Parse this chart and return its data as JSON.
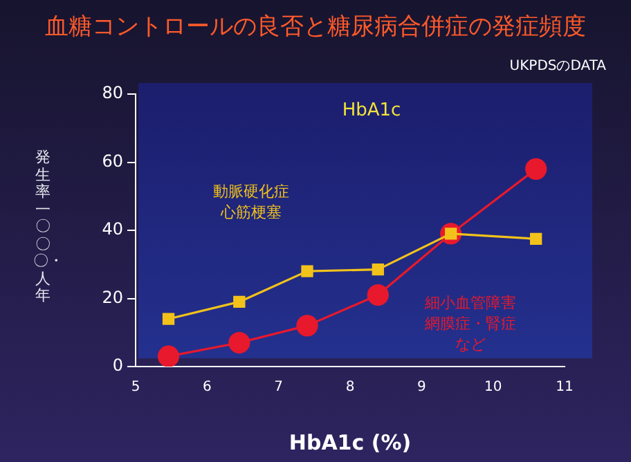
{
  "chart_data": {
    "type": "line",
    "title": "血糖コントロールの良否と糖尿病合併症の発症頻度",
    "xlabel": "HbA1c (%)",
    "ylabel": "発生率一〇〇〇・人年",
    "annotations": [
      "UKPDSのDATA",
      "HbA1c"
    ],
    "xlim": [
      5,
      11
    ],
    "xticks": [
      5,
      6,
      7,
      8,
      9,
      10,
      11
    ],
    "ylim": [
      0,
      80
    ],
    "yticks": [
      0,
      20,
      40,
      60,
      80
    ],
    "grid": false,
    "legend": false,
    "series": [
      {
        "name": "動脈硬化症心筋梗塞",
        "color": "#f2c21b",
        "marker": "square",
        "x": [
          5.46,
          6.45,
          7.4,
          8.39,
          9.41,
          10.6
        ],
        "values": [
          14,
          19,
          28,
          28.5,
          39,
          37.5
        ]
      },
      {
        "name": "細小血管障害網膜症・腎症など",
        "color": "#e8192c",
        "marker": "circle",
        "x": [
          5.46,
          6.45,
          7.4,
          8.39,
          9.41,
          10.6
        ],
        "values": [
          3,
          7,
          12,
          21,
          39,
          58
        ]
      }
    ]
  }
}
